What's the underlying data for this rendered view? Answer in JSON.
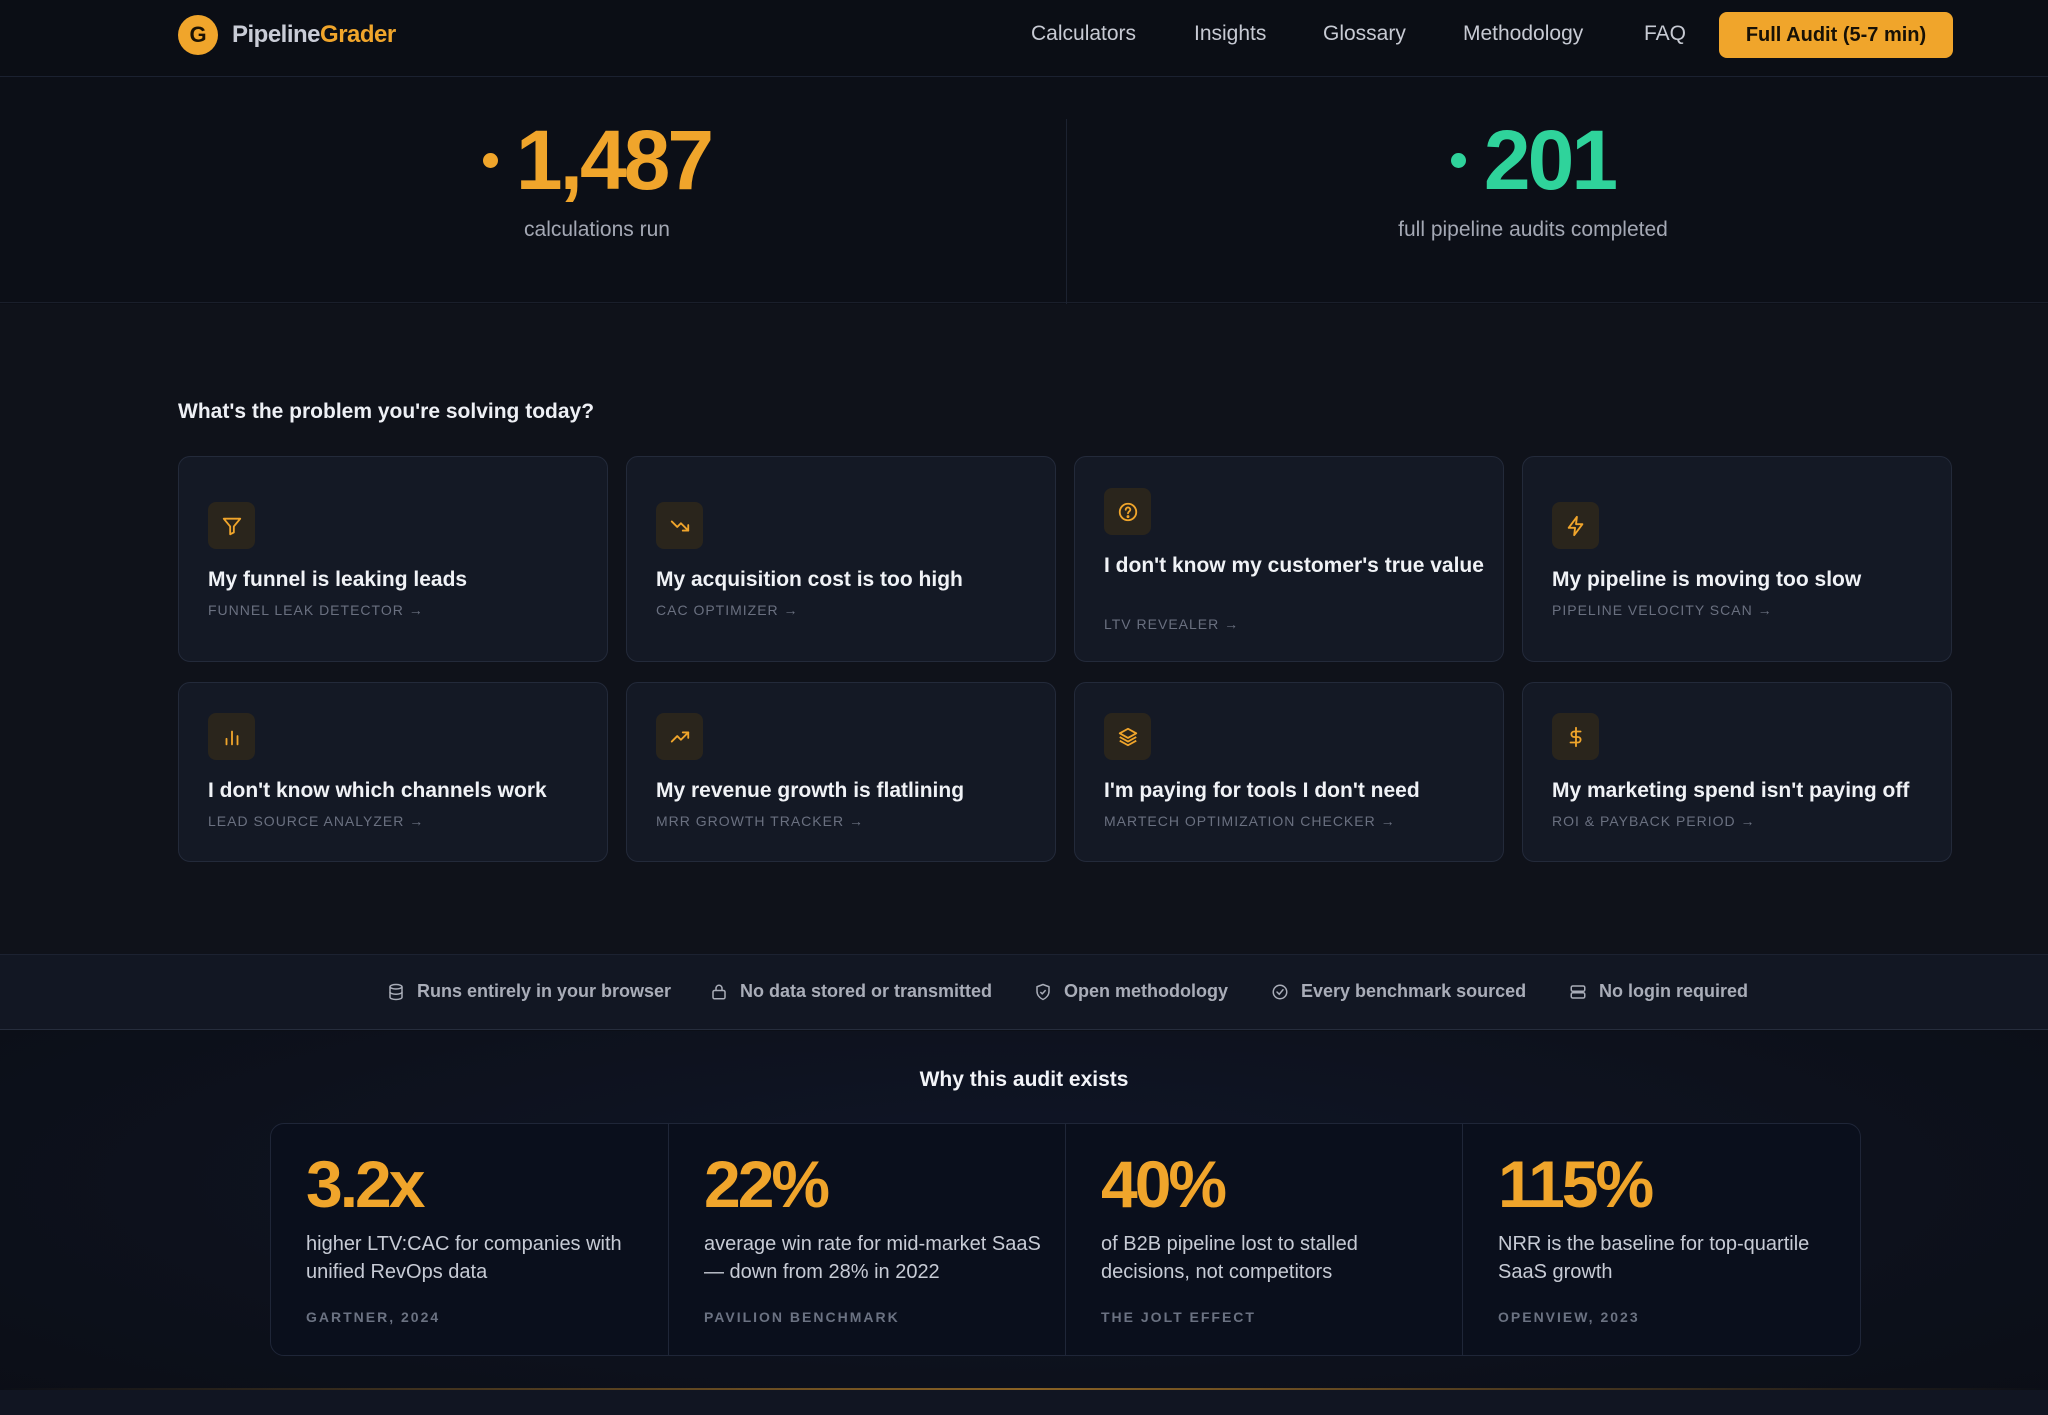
{
  "nav": {
    "brand_part1": "Pipeline",
    "brand_part2": "Grader",
    "brand_initial": "G",
    "links": [
      "Calculators",
      "Insights",
      "Glossary",
      "Methodology",
      "FAQ"
    ],
    "cta_label": "Full Audit (5-7 min)"
  },
  "stats": [
    {
      "value": "1,487",
      "label": "calculations run",
      "color": "#f0a52b"
    },
    {
      "value": "201",
      "label": "full pipeline audits completed",
      "color": "#2fd39b"
    }
  ],
  "problems": {
    "question": "What's the problem you're solving today?",
    "cards": [
      {
        "title": "My funnel is leaking leads",
        "link": "FUNNEL LEAK DETECTOR →",
        "icon": "funnel-icon"
      },
      {
        "title": "My acquisition cost is too high",
        "link": "CAC OPTIMIZER →",
        "icon": "trending-down-icon"
      },
      {
        "title": "I don't know my customer's true value",
        "link": "LTV REVEALER →",
        "icon": "question-circle-icon"
      },
      {
        "title": "My pipeline is moving too slow",
        "link": "PIPELINE VELOCITY SCAN →",
        "icon": "lightning-icon"
      },
      {
        "title": "I don't know which channels work",
        "link": "LEAD SOURCE ANALYZER →",
        "icon": "bar-chart-icon"
      },
      {
        "title": "My revenue growth is flatlining",
        "link": "MRR GROWTH TRACKER →",
        "icon": "trending-up-icon"
      },
      {
        "title": "I'm paying for tools I don't need",
        "link": "MARTECH OPTIMIZATION CHECKER →",
        "icon": "layers-icon"
      },
      {
        "title": "My marketing spend isn't paying off",
        "link": "ROI & PAYBACK PERIOD →",
        "icon": "dollar-icon"
      }
    ]
  },
  "trust": [
    {
      "label": "Runs entirely in your browser",
      "icon": "database-icon"
    },
    {
      "label": "No data stored or transmitted",
      "icon": "lock-icon"
    },
    {
      "label": "Open methodology",
      "icon": "shield-check-icon"
    },
    {
      "label": "Every benchmark sourced",
      "icon": "check-circle-icon"
    },
    {
      "label": "No login required",
      "icon": "server-icon"
    }
  ],
  "why": {
    "title": "Why this audit exists",
    "items": [
      {
        "value": "3.2x",
        "desc": "higher LTV:CAC for companies with unified RevOps data",
        "source": "GARTNER, 2024"
      },
      {
        "value": "22%",
        "desc": "average win rate for mid-market SaaS — down from 28% in 2022",
        "source": "PAVILION BENCHMARK"
      },
      {
        "value": "40%",
        "desc": "of B2B pipeline lost to stalled decisions, not competitors",
        "source": "THE JOLT EFFECT"
      },
      {
        "value": "115%",
        "desc": "NRR is the baseline for top-quartile SaaS growth",
        "source": "OPENVIEW, 2023"
      }
    ]
  },
  "colors": {
    "accent": "#f0a52b",
    "green": "#2fd39b"
  }
}
